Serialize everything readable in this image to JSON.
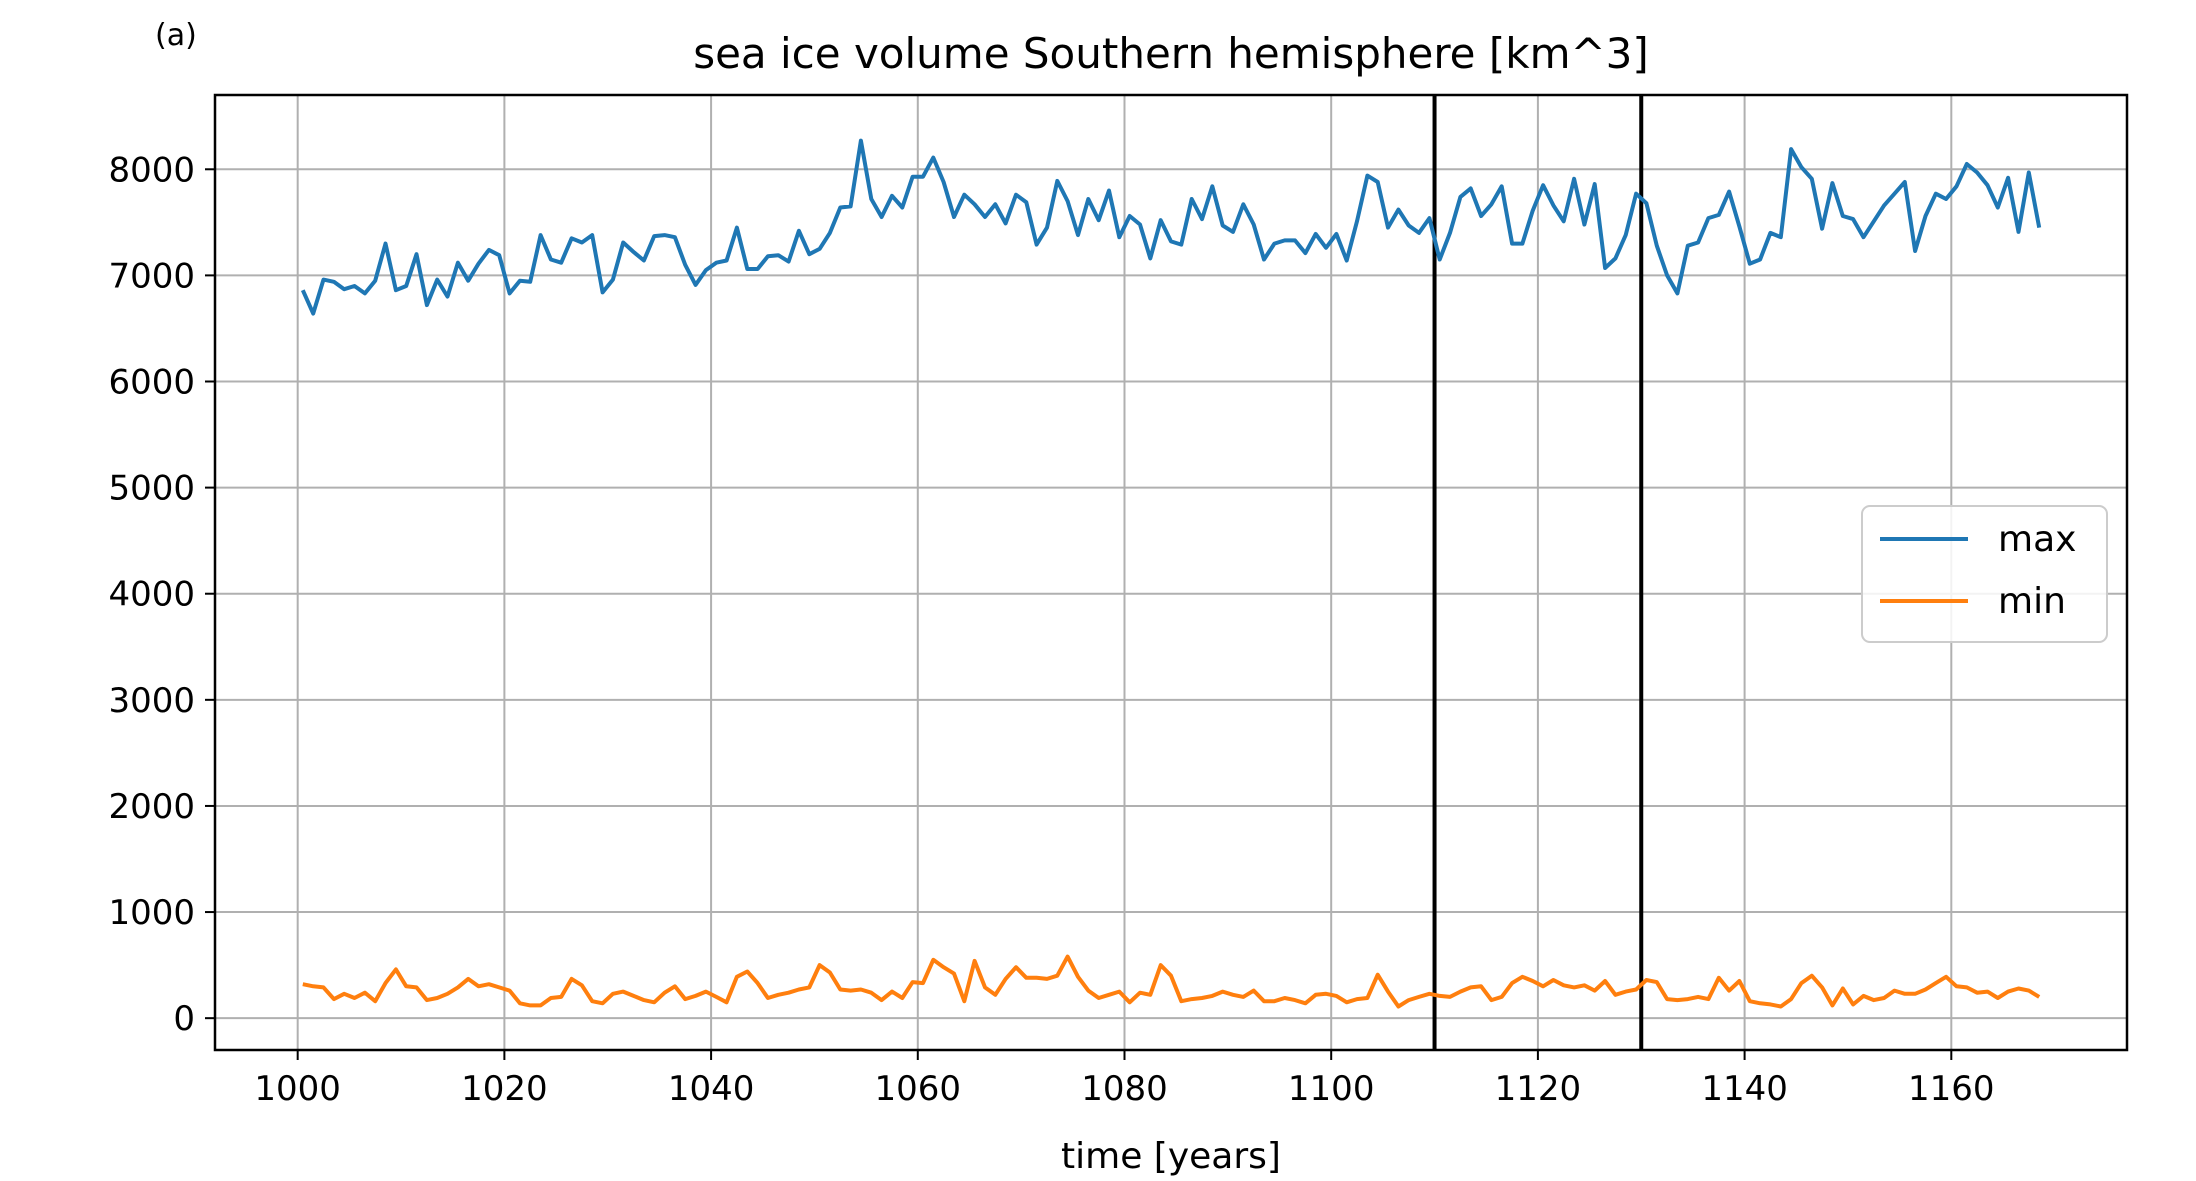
{
  "panel_label": "(a)",
  "chart_data": {
    "type": "line",
    "title": "sea ice volume Southern hemisphere [km^3]",
    "xlabel": "time [years]",
    "ylabel": "",
    "xlim": [
      992,
      1177
    ],
    "ylim": [
      -300,
      8700
    ],
    "xticks": [
      1000,
      1020,
      1040,
      1060,
      1080,
      1100,
      1120,
      1140,
      1160
    ],
    "yticks": [
      0,
      1000,
      2000,
      3000,
      4000,
      5000,
      6000,
      7000,
      8000
    ],
    "grid": true,
    "legend_placement": "center-right",
    "vertical_lines": [
      1110,
      1130
    ],
    "x_start": 1000.5,
    "x_step": 1,
    "series": [
      {
        "name": "max",
        "color": "#1f77b4",
        "values": [
          6860,
          6640,
          6960,
          6940,
          6870,
          6900,
          6830,
          6950,
          7300,
          6860,
          6900,
          7200,
          6720,
          6960,
          6800,
          7120,
          6950,
          7110,
          7240,
          7190,
          6830,
          6950,
          6940,
          7380,
          7150,
          7120,
          7350,
          7310,
          7380,
          6840,
          6960,
          7310,
          7220,
          7140,
          7370,
          7380,
          7360,
          7100,
          6910,
          7050,
          7120,
          7140,
          7450,
          7060,
          7060,
          7180,
          7190,
          7130,
          7420,
          7200,
          7250,
          7400,
          7640,
          7650,
          8270,
          7720,
          7550,
          7750,
          7640,
          7930,
          7930,
          8110,
          7880,
          7550,
          7760,
          7670,
          7550,
          7670,
          7490,
          7760,
          7690,
          7290,
          7450,
          7890,
          7700,
          7380,
          7720,
          7520,
          7800,
          7360,
          7560,
          7480,
          7160,
          7520,
          7320,
          7290,
          7720,
          7530,
          7840,
          7470,
          7410,
          7670,
          7480,
          7150,
          7300,
          7330,
          7330,
          7210,
          7390,
          7260,
          7390,
          7140,
          7510,
          7940,
          7880,
          7450,
          7620,
          7470,
          7400,
          7540,
          7150,
          7400,
          7740,
          7820,
          7560,
          7670,
          7840,
          7300,
          7300,
          7610,
          7850,
          7660,
          7510,
          7910,
          7480,
          7860,
          7070,
          7160,
          7380,
          7770,
          7680,
          7280,
          7000,
          6830,
          7280,
          7310,
          7540,
          7570,
          7790,
          7460,
          7110,
          7150,
          7400,
          7360,
          8190,
          8020,
          7910,
          7440,
          7870,
          7560,
          7530,
          7360,
          7510,
          7660,
          7770,
          7880,
          7230,
          7560,
          7770,
          7720,
          7840,
          8050,
          7970,
          7850,
          7640,
          7920,
          7410,
          7970,
          7450
        ]
      },
      {
        "name": "min",
        "color": "#ff7f0e",
        "values": [
          320,
          300,
          290,
          180,
          230,
          190,
          240,
          160,
          330,
          460,
          300,
          290,
          170,
          190,
          230,
          290,
          370,
          300,
          320,
          290,
          260,
          140,
          120,
          120,
          190,
          200,
          370,
          310,
          160,
          140,
          230,
          250,
          210,
          170,
          150,
          240,
          300,
          180,
          210,
          250,
          200,
          150,
          390,
          440,
          330,
          190,
          220,
          240,
          270,
          290,
          500,
          430,
          270,
          260,
          270,
          240,
          170,
          250,
          190,
          340,
          330,
          550,
          480,
          420,
          160,
          540,
          290,
          220,
          370,
          480,
          380,
          380,
          370,
          400,
          580,
          390,
          260,
          190,
          220,
          250,
          150,
          240,
          220,
          500,
          400,
          160,
          180,
          190,
          210,
          250,
          220,
          200,
          260,
          160,
          160,
          190,
          170,
          140,
          220,
          230,
          210,
          150,
          180,
          190,
          410,
          250,
          110,
          170,
          200,
          230,
          210,
          200,
          250,
          290,
          300,
          170,
          200,
          330,
          390,
          350,
          300,
          360,
          310,
          290,
          310,
          260,
          350,
          220,
          250,
          270,
          360,
          340,
          180,
          170,
          180,
          200,
          180,
          380,
          260,
          350,
          160,
          140,
          130,
          110,
          180,
          330,
          400,
          290,
          120,
          280,
          130,
          210,
          170,
          190,
          260,
          230,
          230,
          270,
          330,
          390,
          300,
          290,
          240,
          250,
          190,
          250,
          280,
          260,
          200
        ]
      }
    ]
  }
}
